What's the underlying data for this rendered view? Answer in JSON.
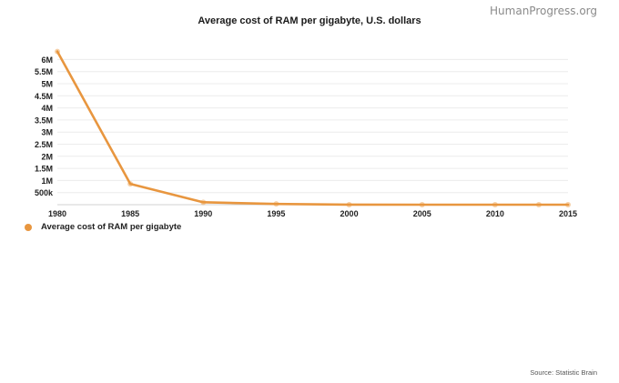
{
  "watermark": "HumanProgress.org",
  "source": "Source: Statistic Brain",
  "accent_color": "#e8963f",
  "chart_data": {
    "type": "line",
    "title": "Average cost of RAM per gigabyte, U.S. dollars",
    "xlabel": "",
    "ylabel": "",
    "x_ticks": [
      "1980",
      "1985",
      "1990",
      "1995",
      "2000",
      "2005",
      "2010",
      "2015"
    ],
    "y_ticks": [
      {
        "value": 500000,
        "label": "500k"
      },
      {
        "value": 1000000,
        "label": "1M"
      },
      {
        "value": 1500000,
        "label": "1.5M"
      },
      {
        "value": 2000000,
        "label": "2M"
      },
      {
        "value": 2500000,
        "label": "2.5M"
      },
      {
        "value": 3000000,
        "label": "3M"
      },
      {
        "value": 3500000,
        "label": "3.5M"
      },
      {
        "value": 4000000,
        "label": "4M"
      },
      {
        "value": 4500000,
        "label": "4.5M"
      },
      {
        "value": 5000000,
        "label": "5M"
      },
      {
        "value": 5500000,
        "label": "5.5M"
      },
      {
        "value": 6000000,
        "label": "6M"
      }
    ],
    "xlim": [
      1980,
      2015
    ],
    "ylim": [
      0,
      6000000
    ],
    "grid": true,
    "legend_position": "bottom-left",
    "series": [
      {
        "name": "Average cost of RAM per gigabyte",
        "x": [
          1980,
          1985,
          1990,
          1995,
          2000,
          2005,
          2010,
          2013,
          2015
        ],
        "values": [
          6328125,
          859375,
          100000,
          32300,
          1400,
          189,
          10.79,
          5.5,
          4.37
        ]
      }
    ]
  }
}
